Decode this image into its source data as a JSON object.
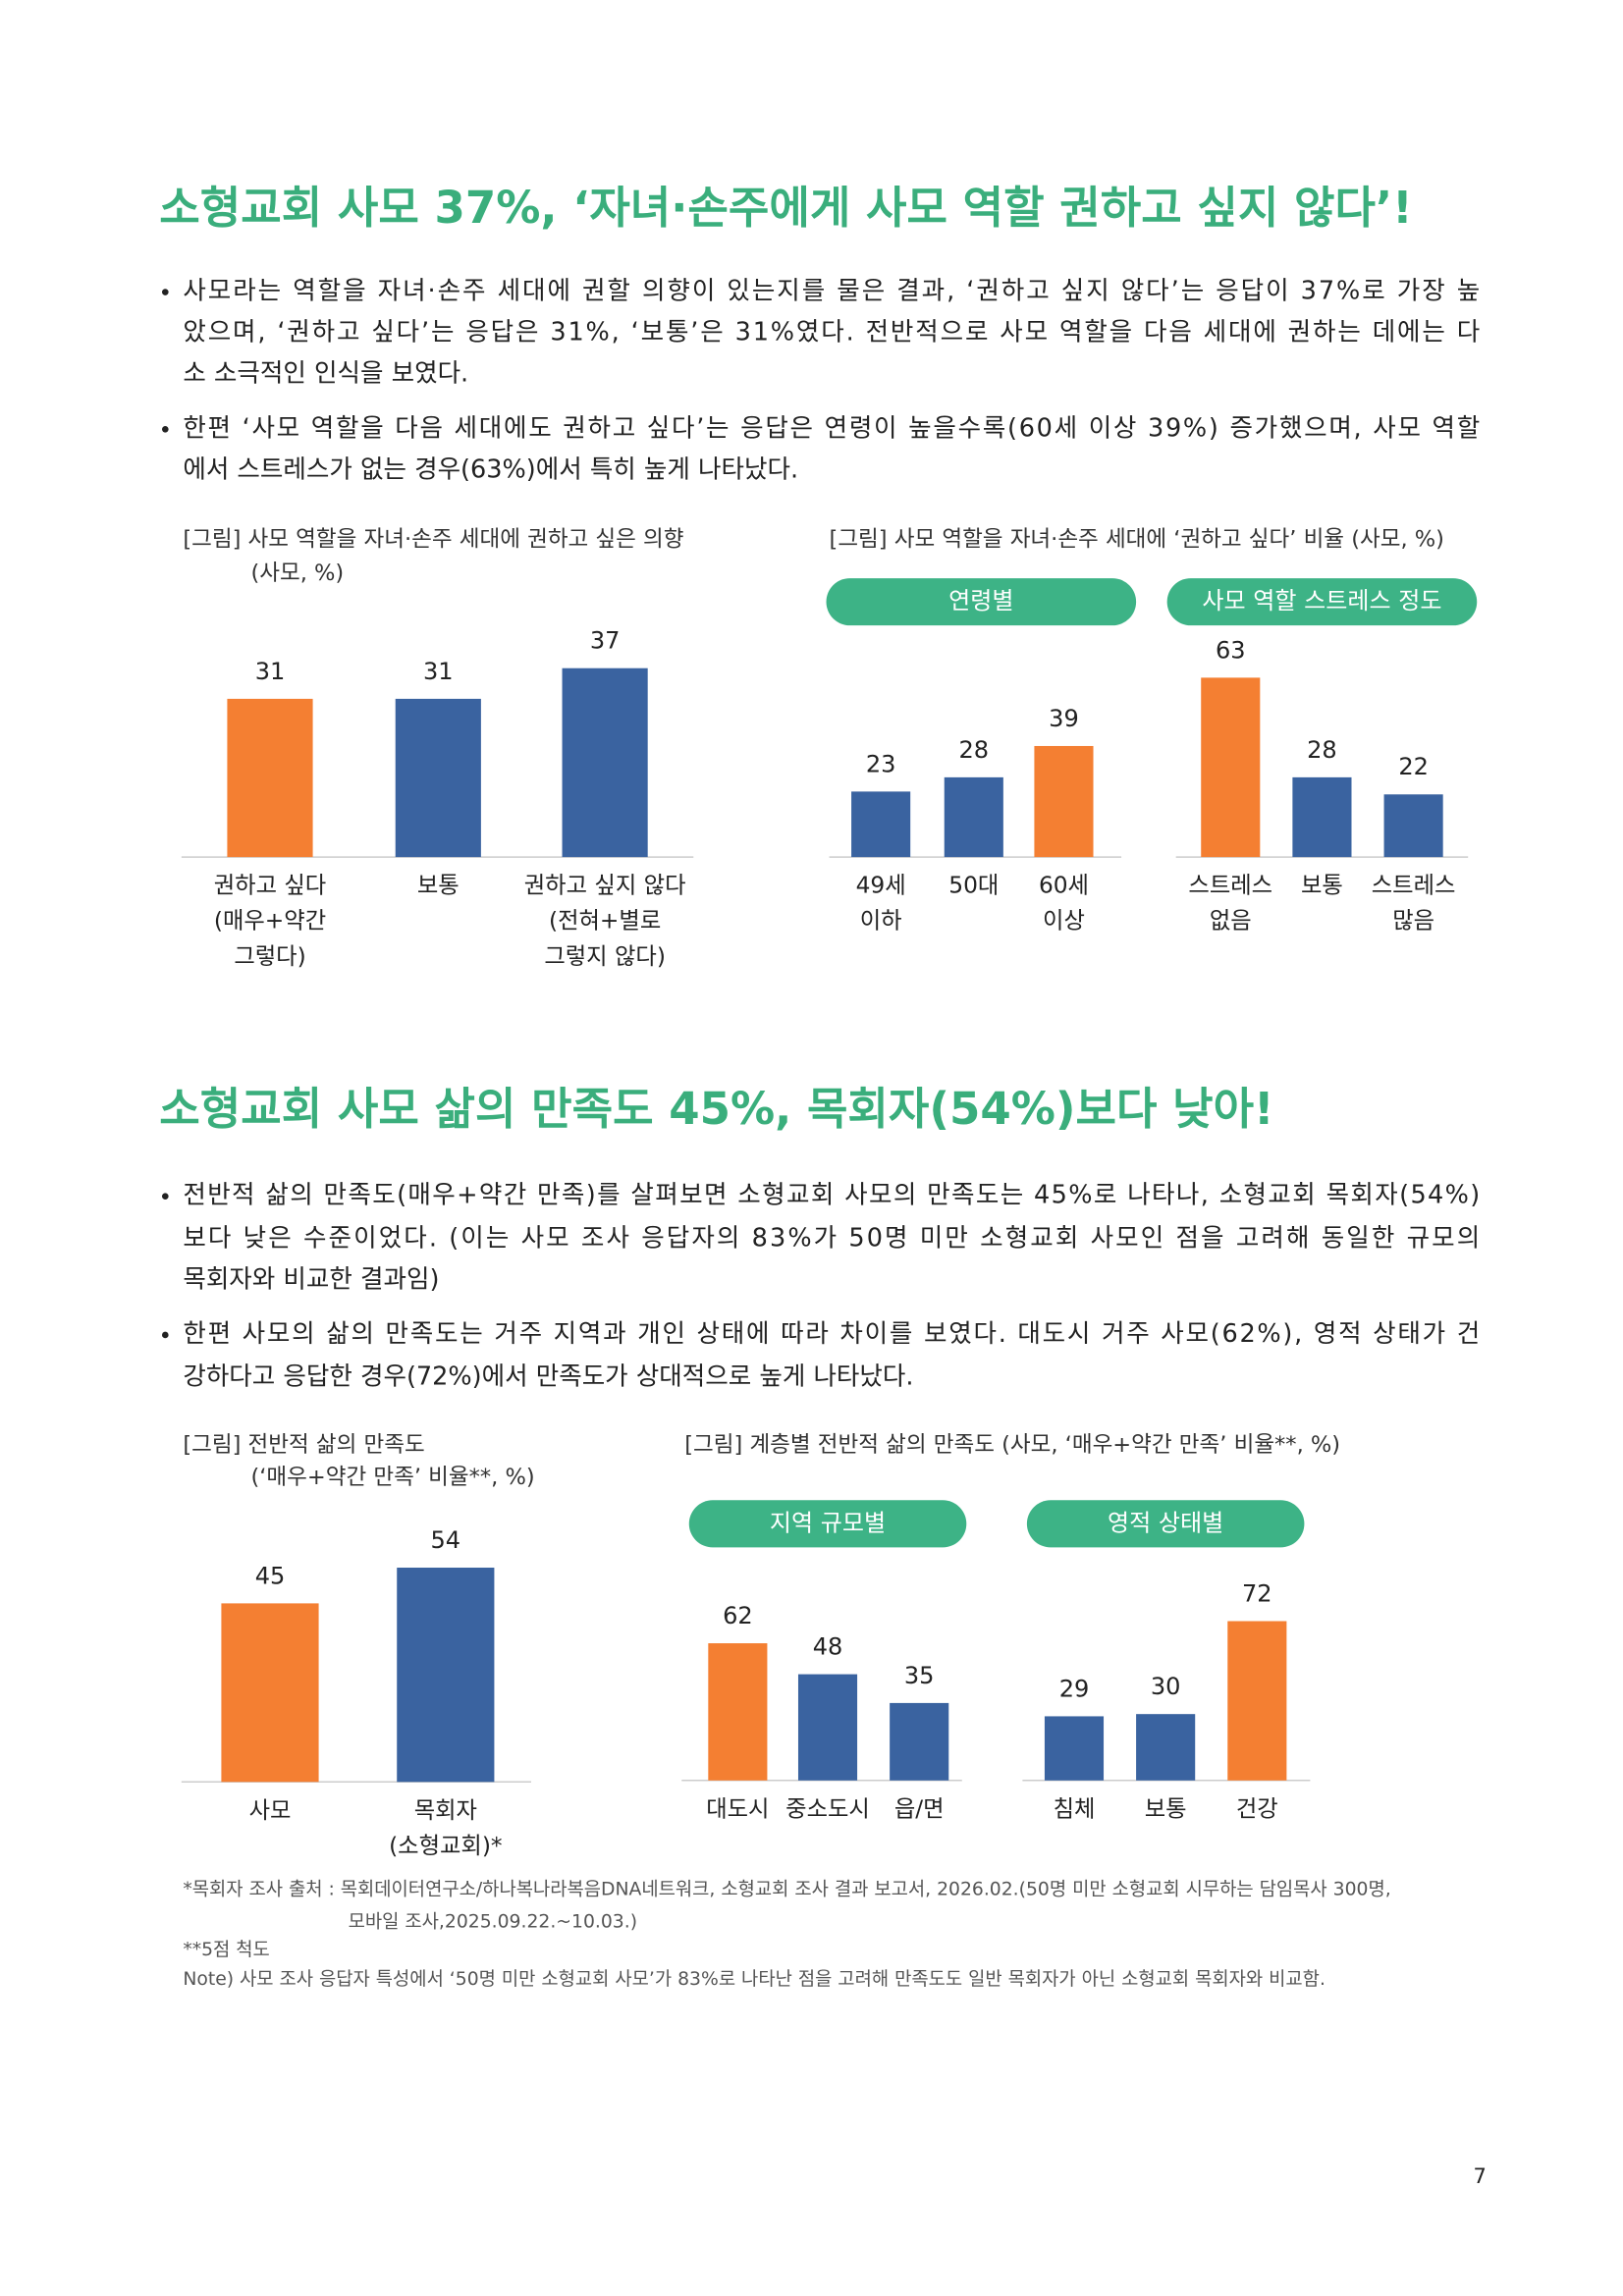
{
  "sections": [
    {
      "title": "소형교회 사모 37%, ‘자녀·손주에게 사모 역할 권하고 싶지 않다’!",
      "bullets": [
        [
          "사모라는 역할을 자녀·손주 세대에 권할 의향이 있는지를 물은 결과, ‘권하고 싶지 않다’는 응답이 37%로 가장 높",
          "았으며, ‘권하고 싶다’는 응답은 31%, ‘보통’은 31%였다. 전반적으로 사모 역할을 다음 세대에 권하는 데에는 다",
          "소 소극적인 인식을 보였다."
        ],
        [
          "한편 ‘사모 역할을 다음 세대에도 권하고 싶다’는 응답은 연령이 높을수록(60세 이상 39%) 증가했으며, 사모 역할",
          "에서 스트레스가 없는 경우(63%)에서 특히 높게 나타났다."
        ]
      ]
    },
    {
      "title": "소형교회 사모 삶의 만족도 45%, 목회자(54%)보다 낮아!",
      "bullets": [
        [
          "전반적 삶의 만족도(매우+약간 만족)를 살펴보면 소형교회 사모의 만족도는 45%로 나타나, 소형교회 목회자(54%)",
          "보다 낮은 수준이었다. (이는 사모 조사 응답자의 83%가 50명 미만 소형교회 사모인 점을 고려해 동일한 규모의",
          "목회자와 비교한 결과임)"
        ],
        [
          "한편 사모의 삶의 만족도는 거주 지역과 개인 상태에 따라 차이를 보였다. 대도시 거주 사모(62%), 영적 상태가 건",
          "강하다고 응답한 경우(72%)에서 만족도가 상대적으로 높게 나타났다."
        ]
      ]
    }
  ],
  "figures": [
    {
      "caption": [
        "[그림] 사모 역할을 자녀·손주 세대에 권하고 싶은 의향",
        "(사모, %)"
      ],
      "chart_data": {
        "type": "bar",
        "categories": [
          [
            "권하고 싶다",
            "(매우+약간",
            "그렇다)"
          ],
          [
            "보통"
          ],
          [
            "권하고 싶지 않다",
            "(전혀+별로",
            "그렇지 않다)"
          ]
        ],
        "values": [
          31,
          31,
          37
        ],
        "colors": [
          "#f47f32",
          "#3a63a0",
          "#3a63a0"
        ]
      }
    },
    {
      "caption": [
        "[그림] 사모 역할을 자녀·손주 세대에 ‘권하고 싶다’ 비율 (사모, %)"
      ],
      "chart_data": [
        {
          "type": "bar",
          "title": "연령별",
          "categories": [
            [
              "49세",
              "이하"
            ],
            [
              "50대"
            ],
            [
              "60세",
              "이상"
            ]
          ],
          "values": [
            23,
            28,
            39
          ],
          "colors": [
            "#3a63a0",
            "#3a63a0",
            "#f47f32"
          ]
        },
        {
          "type": "bar",
          "title": "사모 역할 스트레스 정도",
          "categories": [
            [
              "스트레스",
              "없음"
            ],
            [
              "보통"
            ],
            [
              "스트레스",
              "많음"
            ]
          ],
          "values": [
            63,
            28,
            22
          ],
          "colors": [
            "#f47f32",
            "#3a63a0",
            "#3a63a0"
          ]
        }
      ]
    },
    {
      "caption": [
        "[그림] 전반적 삶의 만족도",
        "(‘매우+약간 만족’ 비율**, %)"
      ],
      "chart_data": {
        "type": "bar",
        "categories": [
          [
            "사모"
          ],
          [
            "목회자",
            "(소형교회)*"
          ]
        ],
        "values": [
          45,
          54
        ],
        "colors": [
          "#f47f32",
          "#3a63a0"
        ]
      }
    },
    {
      "caption": [
        "[그림] 계층별 전반적 삶의 만족도 (사모, ‘매우+약간 만족’ 비율**, %)"
      ],
      "chart_data": [
        {
          "type": "bar",
          "title": "지역 규모별",
          "categories": [
            [
              "대도시"
            ],
            [
              "중소도시"
            ],
            [
              "읍/면"
            ]
          ],
          "values": [
            62,
            48,
            35
          ],
          "colors": [
            "#f47f32",
            "#3a63a0",
            "#3a63a0"
          ]
        },
        {
          "type": "bar",
          "title": "영적 상태별",
          "categories": [
            [
              "침체"
            ],
            [
              "보통"
            ],
            [
              "건강"
            ]
          ],
          "values": [
            29,
            30,
            72
          ],
          "colors": [
            "#3a63a0",
            "#3a63a0",
            "#f47f32"
          ]
        }
      ]
    }
  ],
  "footnotes": [
    "*목회자 조사 출처 : 목회데이터연구소/하나복나라복음DNA네트워크, 소형교회 조사 결과 보고서, 2026.02.(50명 미만 소형교회 시무하는 담임목사 300명,",
    "모바일 조사,2025.09.22.~10.03.)",
    "**5점 척도",
    "Note) 사모 조사 응답자 특성에서 ‘50명 미만 소형교회 사모’가 83%로 나타난 점을 고려해 만족도도 일반 목회자가 아닌 소형교회 목회자와 비교함."
  ],
  "page_number": 7
}
